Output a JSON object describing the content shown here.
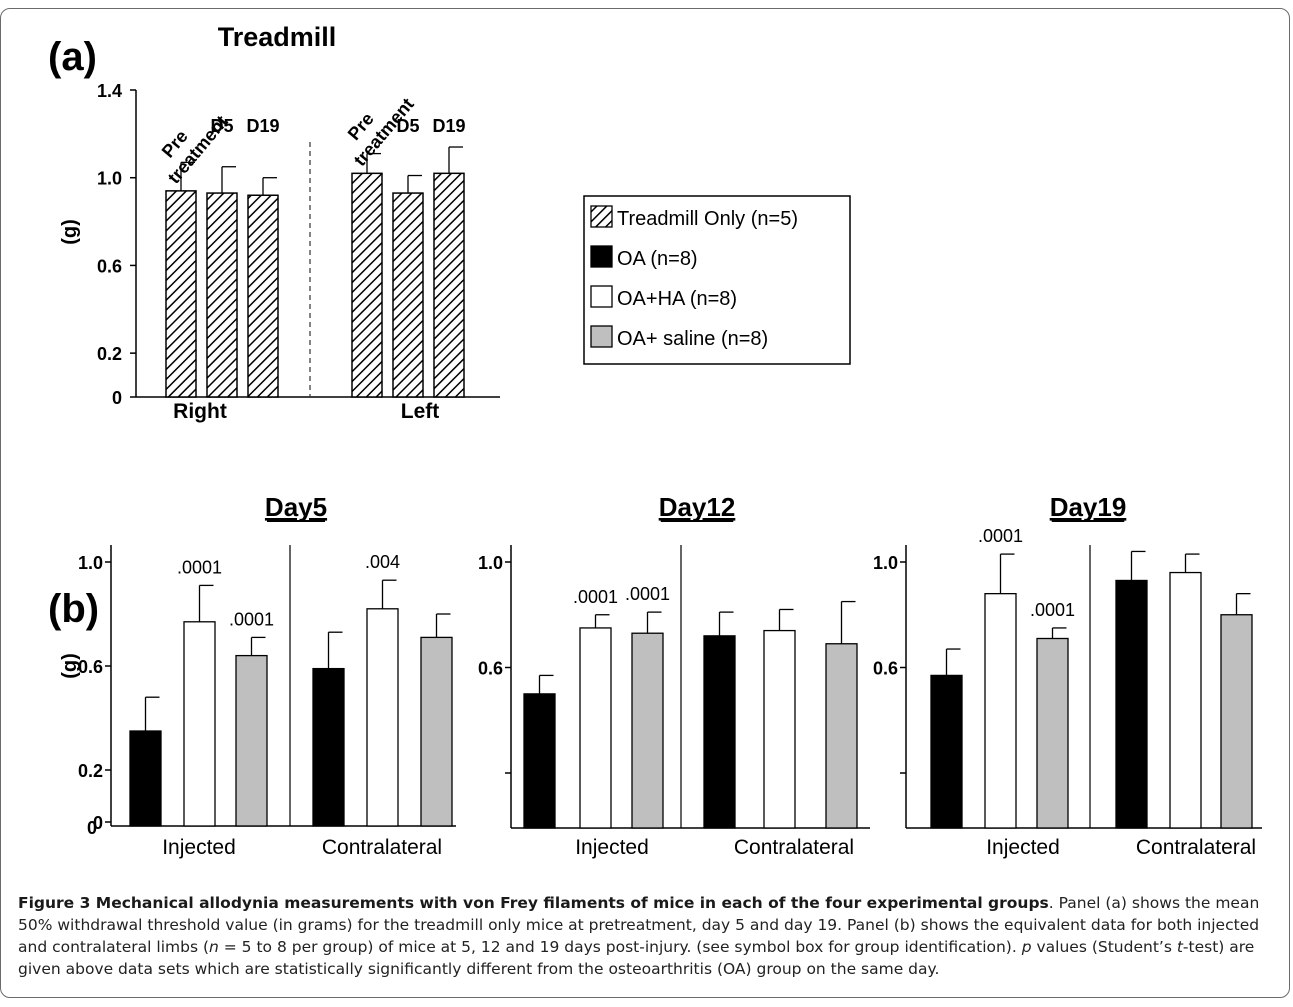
{
  "colors": {
    "treadmill_only": "hatched",
    "oa": "#000000",
    "oa_ha": "#ffffff",
    "oa_saline": "#bfbfbf"
  },
  "legend": {
    "placement": "right",
    "items": [
      {
        "label": "Treadmill Only (n=5)",
        "fill": "hatched"
      },
      {
        "label": "OA (n=8)",
        "fill": "#000000"
      },
      {
        "label": "OA+HA (n=8)",
        "fill": "#ffffff"
      },
      {
        "label": "OA+ saline (n=8)",
        "fill": "#bfbfbf"
      }
    ]
  },
  "chart_data": [
    {
      "type": "bar",
      "panel_label": "(a)",
      "title": "Treadmill",
      "ylabel": "(g)",
      "ylim": [
        0,
        1.4
      ],
      "yticks": [
        "0",
        "0.2",
        "0.6",
        "1.0",
        "1.4"
      ],
      "ytick_values": [
        0,
        0.2,
        0.6,
        1.0,
        1.4
      ],
      "groups": [
        {
          "name": "Right",
          "bars": [
            {
              "label": "Pre\ntreatment",
              "value": 0.94,
              "err": 0.13
            },
            {
              "label": "D5",
              "value": 0.93,
              "err": 0.12
            },
            {
              "label": "D19",
              "value": 0.92,
              "err": 0.08
            }
          ]
        },
        {
          "name": "Left",
          "bars": [
            {
              "label": "Pre\ntreatment",
              "value": 1.02,
              "err": 0.09
            },
            {
              "label": "D5",
              "value": 0.93,
              "err": 0.08
            },
            {
              "label": "D19",
              "value": 1.02,
              "err": 0.12
            }
          ]
        }
      ],
      "series": "Treadmill Only (n=5)"
    },
    {
      "type": "bar",
      "panel_label": "(b)",
      "title": "Day5",
      "ylabel": "(g)",
      "ylim": [
        0,
        1.1
      ],
      "yticks": [
        "0",
        "0.2",
        "0.6",
        "1.0"
      ],
      "ytick_values": [
        0,
        0.2,
        0.6,
        1.0
      ],
      "categories": [
        "Injected",
        "Contralateral"
      ],
      "series": [
        {
          "name": "OA (n=8)",
          "values": [
            0.35,
            0.59
          ],
          "err": [
            0.13,
            0.14
          ],
          "pvals": [
            "",
            ""
          ]
        },
        {
          "name": "OA+HA (n=8)",
          "values": [
            0.77,
            0.82
          ],
          "err": [
            0.14,
            0.11
          ],
          "pvals": [
            ".0001",
            ".004"
          ]
        },
        {
          "name": "OA+ saline (n=8)",
          "values": [
            0.64,
            0.71
          ],
          "err": [
            0.07,
            0.09
          ],
          "pvals": [
            ".0001",
            ""
          ]
        }
      ]
    },
    {
      "type": "bar",
      "title": "Day12",
      "ylim": [
        0.2,
        1.2
      ],
      "yticks": [
        "",
        "0.6",
        "1.0"
      ],
      "ytick_values": [
        0.2,
        0.6,
        1.0
      ],
      "categories": [
        "Injected",
        "Contralateral"
      ],
      "series": [
        {
          "name": "OA (n=8)",
          "values": [
            0.5,
            0.72
          ],
          "err": [
            0.07,
            0.09
          ],
          "pvals": [
            "",
            ""
          ]
        },
        {
          "name": "OA+HA (n=8)",
          "values": [
            0.75,
            0.74
          ],
          "err": [
            0.05,
            0.08
          ],
          "pvals": [
            ".0001",
            ""
          ]
        },
        {
          "name": "OA+ saline (n=8)",
          "values": [
            0.73,
            0.69
          ],
          "err": [
            0.08,
            0.16
          ],
          "pvals": [
            ".0001",
            ""
          ]
        }
      ]
    },
    {
      "type": "bar",
      "title": "Day19",
      "ylim": [
        0.2,
        1.2
      ],
      "yticks": [
        "",
        "0.6",
        "1.0"
      ],
      "ytick_values": [
        0.2,
        0.6,
        1.0
      ],
      "categories": [
        "Injected",
        "Contralateral"
      ],
      "series": [
        {
          "name": "OA (n=8)",
          "values": [
            0.57,
            0.93
          ],
          "err": [
            0.1,
            0.11
          ],
          "pvals": [
            "",
            ""
          ]
        },
        {
          "name": "OA+HA (n=8)",
          "values": [
            0.88,
            0.96
          ],
          "err": [
            0.15,
            0.07
          ],
          "pvals": [
            ".0001",
            ""
          ]
        },
        {
          "name": "OA+ saline (n=8)",
          "values": [
            0.71,
            0.8
          ],
          "err": [
            0.04,
            0.08
          ],
          "pvals": [
            ".0001",
            ""
          ]
        }
      ]
    }
  ],
  "caption": {
    "title": "Figure 3 Mechanical allodynia measurements with von Frey filaments of mice in each of the four experimental groups",
    "text_1": ". Panel (a) shows the mean 50% withdrawal threshold value (in grams) for the treadmill only mice at pretreatment, day 5 and day 19. Panel (b) shows the equivalent data for both injected and contralateral limbs (",
    "n_symbol": "n",
    "text_2": " = 5 to 8 per group) of mice at 5, 12 and 19 days post-injury. (see symbol box for group identification). ",
    "p_symbol": "p",
    "text_3": " values (Student’s ",
    "t_symbol": "t",
    "text_4": "-test) are given above data sets which are statistically significantly different from the osteoarthritis (OA) group on the same day."
  }
}
